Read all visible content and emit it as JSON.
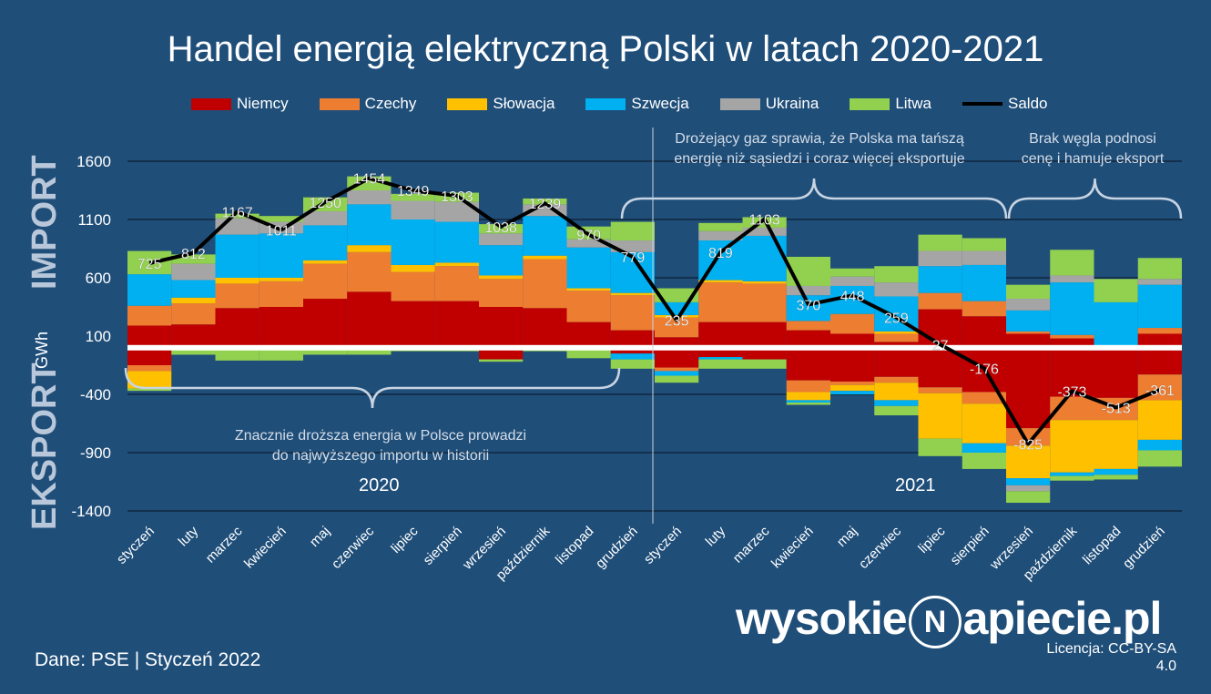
{
  "title": "Handel energią elektryczną Polski w latach 2020-2021",
  "side_labels": {
    "import": "IMPORT",
    "export": "EKSPORT",
    "unit": "GWh"
  },
  "annotations": {
    "bottom_2020": [
      "Znacznie droższa energia w Polsce prowadzi",
      "do najwyższego importu w historii"
    ],
    "top_2021_a": [
      "Drożejący gaz sprawia, że Polska ma tańszą",
      "energię niż sąsiedzi i coraz więcej eksportuje"
    ],
    "top_2021_b": [
      "Brak węgla podnosi",
      "cenę i hamuje eksport"
    ]
  },
  "years": {
    "y2020": "2020",
    "y2021": "2021"
  },
  "footer": "Dane: PSE  |  Styczeń 2022",
  "logo": {
    "left": "wysokie",
    "mark": "N",
    "right": "apiecie.pl"
  },
  "license": {
    "line1": "Licencja: CC-BY-SA",
    "line2": "4.0"
  },
  "colors": {
    "Niemcy": "#c00000",
    "Czechy": "#ed7d31",
    "Słowacja": "#ffc000",
    "Szwecja": "#00b0f0",
    "Ukraina": "#a5a5a5",
    "Litwa": "#92d050",
    "Saldo": "#000000"
  },
  "chart_data": {
    "type": "bar",
    "stacked": true,
    "title": "Handel energią elektryczną Polski w latach 2020-2021",
    "ylabel": "GWh",
    "ylim": [
      -1400,
      1600
    ],
    "yticks": [
      1600,
      1100,
      600,
      100,
      -400,
      -900,
      -1400
    ],
    "categories": [
      "styczeń",
      "luty",
      "marzec",
      "kwiecień",
      "maj",
      "czerwiec",
      "lipiec",
      "sierpień",
      "wrzesień",
      "październik",
      "listopad",
      "grudzień",
      "styczeń",
      "luty",
      "marzec",
      "kwiecień",
      "maj",
      "czerwiec",
      "lipiec",
      "sierpień",
      "wrzesień",
      "październik",
      "listopad",
      "grudzień"
    ],
    "import_series": [
      {
        "name": "Niemcy",
        "values": [
          190,
          200,
          340,
          350,
          420,
          480,
          400,
          400,
          350,
          340,
          220,
          150,
          90,
          220,
          220,
          150,
          120,
          50,
          330,
          270,
          120,
          80,
          0,
          120
        ]
      },
      {
        "name": "Czechy",
        "values": [
          170,
          180,
          210,
          220,
          300,
          340,
          250,
          300,
          240,
          420,
          270,
          300,
          170,
          340,
          330,
          80,
          170,
          70,
          140,
          130,
          20,
          30,
          0,
          50
        ]
      },
      {
        "name": "Słowacja",
        "values": [
          0,
          50,
          50,
          30,
          30,
          60,
          60,
          30,
          30,
          30,
          20,
          20,
          20,
          20,
          20,
          0,
          0,
          20,
          0,
          0,
          0,
          0,
          0,
          0
        ]
      },
      {
        "name": "Szwecja",
        "values": [
          270,
          150,
          370,
          380,
          300,
          350,
          390,
          350,
          260,
          340,
          350,
          350,
          110,
          340,
          390,
          220,
          240,
          300,
          230,
          310,
          180,
          450,
          390,
          370
        ]
      },
      {
        "name": "Ukraina",
        "values": [
          0,
          140,
          140,
          100,
          120,
          120,
          160,
          170,
          100,
          100,
          70,
          100,
          0,
          80,
          70,
          80,
          80,
          120,
          130,
          120,
          100,
          60,
          0,
          50
        ]
      },
      {
        "name": "Litwa",
        "values": [
          200,
          80,
          40,
          50,
          120,
          120,
          60,
          80,
          80,
          50,
          110,
          160,
          120,
          70,
          90,
          250,
          70,
          140,
          140,
          110,
          120,
          220,
          200,
          180
        ]
      }
    ],
    "export_series": [
      {
        "name": "Niemcy",
        "values": [
          -150,
          -10,
          -10,
          -10,
          -10,
          -10,
          -10,
          -10,
          -100,
          -10,
          -10,
          -50,
          -170,
          -80,
          -100,
          -280,
          -290,
          -250,
          -340,
          -380,
          -690,
          -420,
          -430,
          -230
        ]
      },
      {
        "name": "Czechy",
        "values": [
          -50,
          0,
          0,
          0,
          0,
          0,
          0,
          0,
          0,
          0,
          0,
          0,
          -30,
          0,
          0,
          -100,
          -30,
          -50,
          -50,
          -100,
          -150,
          -200,
          -190,
          -220
        ]
      },
      {
        "name": "Słowacja",
        "values": [
          -150,
          0,
          0,
          0,
          0,
          0,
          0,
          0,
          0,
          0,
          0,
          0,
          0,
          0,
          0,
          -70,
          -50,
          -150,
          -390,
          -340,
          -280,
          -450,
          -420,
          -340
        ]
      },
      {
        "name": "Szwecja",
        "values": [
          0,
          0,
          0,
          0,
          0,
          0,
          0,
          0,
          0,
          0,
          0,
          -50,
          -40,
          -20,
          0,
          -20,
          -30,
          -50,
          0,
          -80,
          -60,
          -30,
          -50,
          -90
        ]
      },
      {
        "name": "Ukraina",
        "values": [
          0,
          0,
          0,
          0,
          0,
          0,
          0,
          0,
          0,
          0,
          0,
          0,
          0,
          0,
          0,
          0,
          0,
          0,
          0,
          0,
          -50,
          0,
          0,
          0
        ]
      },
      {
        "name": "Litwa",
        "values": [
          -20,
          -50,
          -100,
          -100,
          -50,
          -50,
          -20,
          -20,
          -20,
          -20,
          -80,
          -80,
          -60,
          -80,
          -80,
          -20,
          0,
          -80,
          -150,
          -140,
          -100,
          -40,
          -40,
          -140
        ]
      }
    ],
    "saldo": {
      "name": "Saldo",
      "values": [
        725,
        812,
        1167,
        1011,
        1250,
        1454,
        1349,
        1303,
        1038,
        1239,
        970,
        779,
        235,
        819,
        1103,
        370,
        448,
        259,
        27,
        -176,
        -825,
        -373,
        -513,
        -361
      ]
    },
    "legend": [
      "Niemcy",
      "Czechy",
      "Słowacja",
      "Szwecja",
      "Ukraina",
      "Litwa",
      "Saldo"
    ],
    "legend_position": "top"
  }
}
